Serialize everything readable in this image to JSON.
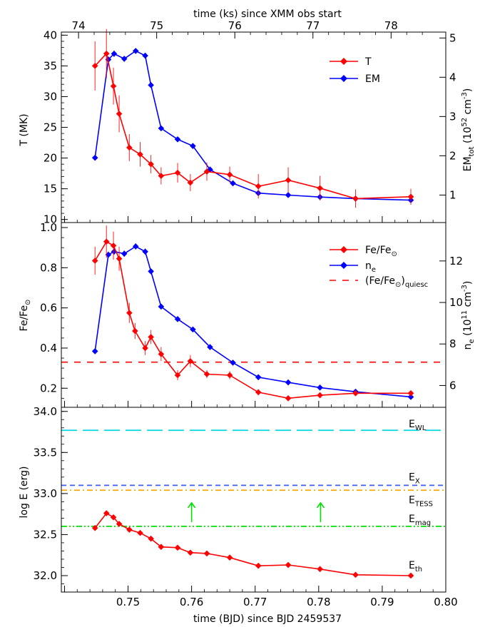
{
  "chart_data": [
    {
      "type": "line",
      "panel": "temperature-emission-measure",
      "top_xlabel": "time (ks) since XMM obs start",
      "top_xticks": [
        74,
        75,
        76,
        77,
        78
      ],
      "top_xlim": [
        73.78,
        78.7
      ],
      "xlim": [
        0.7395,
        0.8
      ],
      "ylabel": "T (MK)",
      "ylim": [
        9.5,
        40.5
      ],
      "yticks": [
        10,
        15,
        20,
        25,
        30,
        35,
        40
      ],
      "y2label_main": "EM",
      "y2label_sub": "tot",
      "y2label_rest": " (10",
      "y2label_exp": "52",
      "y2label_unit": " cm",
      "y2label_unitexp": "-3",
      "y2label_close": ")",
      "y2lim": [
        0.3,
        5.15
      ],
      "y2ticks": [
        1,
        2,
        3,
        4,
        5
      ],
      "legend_position": "top-right",
      "series": [
        {
          "name": "T",
          "axis": "left",
          "color": "#ff0000",
          "x": [
            0.7448,
            0.7466,
            0.7477,
            0.7486,
            0.7502,
            0.7519,
            0.7536,
            0.7552,
            0.7578,
            0.7598,
            0.7624,
            0.766,
            0.7705,
            0.7752,
            0.7802,
            0.7858,
            0.7945
          ],
          "y": [
            35.0,
            37.0,
            31.7,
            27.2,
            21.7,
            20.6,
            19.0,
            17.1,
            17.6,
            16.0,
            17.8,
            17.3,
            15.4,
            16.4,
            15.1,
            13.4,
            13.7
          ],
          "err": [
            4.0,
            4.0,
            3.0,
            3.0,
            2.2,
            2.0,
            1.5,
            1.4,
            1.6,
            1.4,
            1.5,
            1.3,
            2.0,
            2.1,
            2.0,
            1.5,
            1.3
          ]
        },
        {
          "name": "EM",
          "axis": "right",
          "color": "#0000ff",
          "x": [
            0.7448,
            0.7469,
            0.7478,
            0.7494,
            0.7512,
            0.7527,
            0.7536,
            0.7552,
            0.7578,
            0.7602,
            0.7629,
            0.7665,
            0.7705,
            0.7752,
            0.7802,
            0.7858,
            0.7945
          ],
          "y": [
            1.95,
            4.45,
            4.6,
            4.47,
            4.67,
            4.55,
            3.8,
            2.7,
            2.42,
            2.25,
            1.65,
            1.3,
            1.05,
            1.0,
            0.95,
            0.91,
            0.87
          ],
          "err": [
            0.05,
            0.08,
            0.08,
            0.07,
            0.07,
            0.07,
            0.06,
            0.05,
            0.05,
            0.05,
            0.04,
            0.04,
            0.03,
            0.03,
            0.03,
            0.03,
            0.03
          ]
        }
      ]
    },
    {
      "type": "line",
      "panel": "abundance-density",
      "ylabel_main": "Fe/Fe",
      "ylabel_sub": "⊙",
      "ylim": [
        0.105,
        1.025
      ],
      "yticks": [
        0.2,
        0.4,
        0.6,
        0.8,
        1.0
      ],
      "ytick_labels": [
        "0.2",
        "0.4",
        "0.6",
        "0.8",
        "1.0"
      ],
      "y2label_main": "n",
      "y2label_sub": "e",
      "y2label_rest": " (10",
      "y2label_exp": "11",
      "y2label_unit": " cm",
      "y2label_unitexp": "-3",
      "y2label_close": ")",
      "y2lim": [
        4.95,
        13.85
      ],
      "y2ticks": [
        6,
        8,
        10,
        12
      ],
      "legend_position": "top-right",
      "series": [
        {
          "name_main": "Fe/Fe",
          "name_sub": "⊙",
          "axis": "left",
          "color": "#ff0000",
          "x": [
            0.7448,
            0.7466,
            0.7477,
            0.7486,
            0.7502,
            0.7511,
            0.7527,
            0.7536,
            0.7552,
            0.7578,
            0.7598,
            0.7624,
            0.766,
            0.7705,
            0.7752,
            0.7802,
            0.7858,
            0.7945
          ],
          "y": [
            0.835,
            0.93,
            0.91,
            0.845,
            0.575,
            0.485,
            0.4,
            0.455,
            0.37,
            0.265,
            0.335,
            0.27,
            0.265,
            0.18,
            0.15,
            0.165,
            0.175,
            0.175
          ],
          "err": [
            0.07,
            0.08,
            0.07,
            0.06,
            0.05,
            0.04,
            0.035,
            0.035,
            0.035,
            0.025,
            0.03,
            0.02,
            0.02,
            0.015,
            0.012,
            0.012,
            0.012,
            0.012
          ]
        },
        {
          "name_main": "n",
          "name_sub": "e",
          "axis": "right",
          "color": "#0000ff",
          "x": [
            0.7448,
            0.7469,
            0.7478,
            0.7494,
            0.7512,
            0.7527,
            0.7536,
            0.7552,
            0.7578,
            0.7602,
            0.7629,
            0.7665,
            0.7705,
            0.7752,
            0.7802,
            0.7858,
            0.7945
          ],
          "y": [
            7.65,
            12.3,
            12.45,
            12.35,
            12.7,
            12.45,
            11.5,
            9.8,
            9.2,
            8.7,
            7.85,
            7.1,
            6.4,
            6.15,
            5.9,
            5.7,
            5.45
          ],
          "err": [
            0.1,
            0.15,
            0.15,
            0.15,
            0.15,
            0.15,
            0.12,
            0.1,
            0.1,
            0.1,
            0.08,
            0.08,
            0.06,
            0.06,
            0.05,
            0.05,
            0.05
          ]
        }
      ],
      "quiescent_level": 0.33,
      "quiescent_label_main": "(Fe/Fe",
      "quiescent_label_sub": "⊙",
      "quiescent_label_close": ")",
      "quiescent_label_sub2": "quiesc",
      "quiescent_color": "#ff0000"
    },
    {
      "type": "line",
      "panel": "energy",
      "ylabel": "log E (erg)",
      "xlabel": "time (BJD) since BJD 2459537",
      "xticks": [
        0.75,
        0.76,
        0.77,
        0.78,
        0.79,
        0.8
      ],
      "xtick_labels": [
        "0.75",
        "0.76",
        "0.77",
        "0.78",
        "0.79",
        "0.80"
      ],
      "ylim": [
        31.8,
        34.05
      ],
      "yticks": [
        32.0,
        32.5,
        33.0,
        33.5,
        34.0
      ],
      "ytick_labels": [
        "32.0",
        "32.5",
        "33.0",
        "33.5",
        "34.0"
      ],
      "series": [
        {
          "name_main": "E",
          "name_sub": "th",
          "color": "#ff0000",
          "x": [
            0.7448,
            0.7466,
            0.7477,
            0.7486,
            0.7502,
            0.7519,
            0.7536,
            0.7552,
            0.7578,
            0.7598,
            0.7624,
            0.766,
            0.7705,
            0.7752,
            0.7802,
            0.7858,
            0.7945
          ],
          "y": [
            32.58,
            32.76,
            32.71,
            32.63,
            32.56,
            32.52,
            32.45,
            32.35,
            32.34,
            32.28,
            32.27,
            32.22,
            32.12,
            32.13,
            32.08,
            32.01,
            32.0
          ]
        }
      ],
      "reference_lines": [
        {
          "name_main": "E",
          "name_sub": "WL",
          "value": 33.77,
          "color": "#00d8e0",
          "dash": "long"
        },
        {
          "name_main": "E",
          "name_sub": "X",
          "value": 33.1,
          "color": "#3d5cff",
          "dash": "short"
        },
        {
          "name_main": "E",
          "name_sub": "TESS",
          "value": 33.04,
          "color": "#ffa500",
          "dash": "dashdot"
        },
        {
          "name_main": "E",
          "name_sub": "mag",
          "value": 32.6,
          "color": "#00e000",
          "dash": "dashdotdot"
        }
      ],
      "lower_limit_arrows": {
        "color": "#00e000",
        "x": [
          0.76,
          0.7803
        ],
        "y": 32.6
      }
    }
  ]
}
